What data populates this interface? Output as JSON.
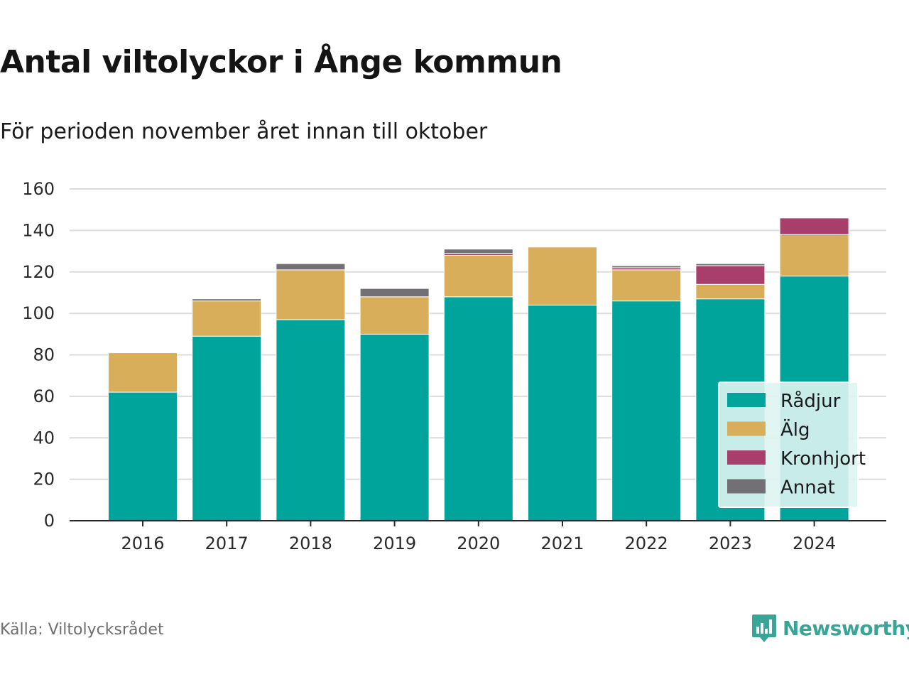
{
  "header": {
    "title": "Antal viltolyckor i Ånge kommun",
    "subtitle": "För perioden november året innan till oktober"
  },
  "footer": {
    "source": "Källa: Viltolycksrådet",
    "brand": "Newsworthy",
    "brand_color": "#3aa597"
  },
  "chart_data": {
    "type": "bar",
    "stacked": true,
    "categories": [
      "2016",
      "2017",
      "2018",
      "2019",
      "2020",
      "2021",
      "2022",
      "2023",
      "2024"
    ],
    "series": [
      {
        "name": "Rådjur",
        "color": "#00a49a",
        "values": [
          62,
          89,
          97,
          90,
          108,
          104,
          106,
          107,
          118
        ]
      },
      {
        "name": "Älg",
        "color": "#d8ae5a",
        "values": [
          19,
          17,
          24,
          18,
          20,
          28,
          15,
          7,
          20
        ]
      },
      {
        "name": "Kronhjort",
        "color": "#a83e6a",
        "values": [
          0,
          0,
          0,
          0,
          1,
          0,
          1,
          9,
          8
        ]
      },
      {
        "name": "Annat",
        "color": "#727075",
        "values": [
          0,
          1,
          3,
          4,
          2,
          0,
          1,
          1,
          0
        ]
      }
    ],
    "ylim": [
      0,
      160
    ],
    "yticks": [
      0,
      20,
      40,
      60,
      80,
      100,
      120,
      140,
      160
    ],
    "grid": true,
    "legend": "bottom-right",
    "title": "",
    "xlabel": "",
    "ylabel": ""
  }
}
